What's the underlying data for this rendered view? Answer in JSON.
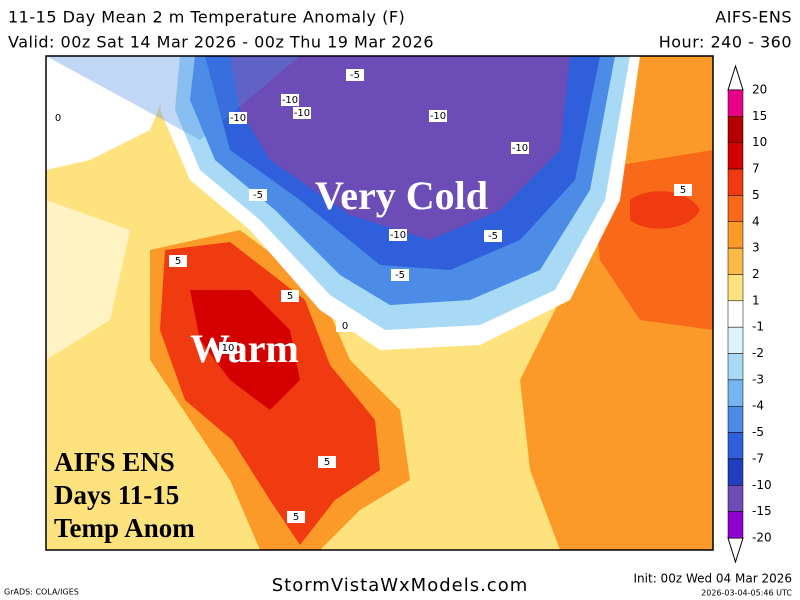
{
  "header": {
    "title": "11-15 Day Mean 2 m Temperature Anomaly (F)",
    "valid": "Valid: 00z Sat 14 Mar 2026 - 00z Thu 19 Mar 2026",
    "model": "AIFS-ENS",
    "hour": "Hour: 240 - 360"
  },
  "map": {
    "annotations": [
      "Very Cold",
      "Warm"
    ],
    "label_box": [
      "AIFS ENS",
      "Days 11-15",
      "Temp Anom"
    ],
    "contour_labels": [
      -5,
      -10,
      -10,
      -10,
      -10,
      -10,
      -5,
      -10,
      -5,
      -5,
      5,
      5,
      5,
      5,
      0,
      10,
      5,
      0
    ]
  },
  "colorbar": {
    "levels": [
      20,
      15,
      10,
      7,
      5,
      4,
      3,
      2,
      1,
      -1,
      -2,
      -3,
      -4,
      -5,
      -7,
      -10,
      -15,
      -20
    ],
    "colors": [
      "#e8008a",
      "#b50000",
      "#d40000",
      "#f03a10",
      "#f86a1a",
      "#fb9a28",
      "#fdba48",
      "#fee27e",
      "#ffffff",
      "#dff3fd",
      "#a8daf6",
      "#76b6f0",
      "#4c8ce6",
      "#2f5fdb",
      "#1f3fc0",
      "#6c4cb6",
      "#9000d0"
    ]
  },
  "footer": {
    "credit": "GrADS: COLA/IGES",
    "site": "StormVistaWxModels.com",
    "init": "Init: 00z Wed 04 Mar 2026",
    "stamp": "2026-03-04-05:46 UTC"
  }
}
